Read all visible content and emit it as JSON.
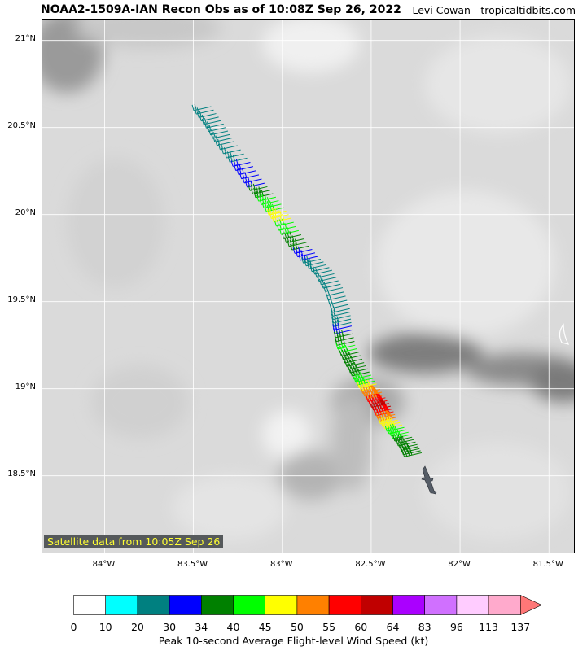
{
  "title": "NOAA2-1509A-IAN Recon Obs as of 10:08Z Sep 26, 2022",
  "credit": "Levi Cowan - tropicaltidbits.com",
  "satellite_note": "Satellite data from 10:05Z Sep 26",
  "map": {
    "lon_range": [
      -84.35,
      -81.35
    ],
    "lat_range": [
      18.05,
      21.12
    ],
    "lat_ticks": [
      {
        "value": 21.0,
        "label": "21°N"
      },
      {
        "value": 20.5,
        "label": "20.5°N"
      },
      {
        "value": 20.0,
        "label": "20°N"
      },
      {
        "value": 19.5,
        "label": "19.5°N"
      },
      {
        "value": 19.0,
        "label": "19°N"
      },
      {
        "value": 18.5,
        "label": "18.5°N"
      }
    ],
    "lon_ticks": [
      {
        "value": -84.0,
        "label": "84°W"
      },
      {
        "value": -83.5,
        "label": "83.5°W"
      },
      {
        "value": -83.0,
        "label": "83°W"
      },
      {
        "value": -82.5,
        "label": "82.5°W"
      },
      {
        "value": -82.0,
        "label": "82°W"
      },
      {
        "value": -81.5,
        "label": "81.5°W"
      }
    ],
    "background_color": "#dcdcdc",
    "grid": true
  },
  "flight_track": [
    {
      "lon": -83.4,
      "lat": 20.62,
      "wind": 20
    },
    {
      "lon": -83.33,
      "lat": 20.52,
      "wind": 22
    },
    {
      "lon": -83.27,
      "lat": 20.42,
      "wind": 20
    },
    {
      "lon": -83.18,
      "lat": 20.3,
      "wind": 31
    },
    {
      "lon": -83.1,
      "lat": 20.18,
      "wind": 32
    },
    {
      "lon": -83.02,
      "lat": 20.08,
      "wind": 42
    },
    {
      "lon": -82.95,
      "lat": 19.98,
      "wind": 47
    },
    {
      "lon": -82.88,
      "lat": 19.86,
      "wind": 36
    },
    {
      "lon": -82.8,
      "lat": 19.76,
      "wind": 32
    },
    {
      "lon": -82.72,
      "lat": 19.68,
      "wind": 20
    },
    {
      "lon": -82.66,
      "lat": 19.58,
      "wind": 20
    },
    {
      "lon": -82.62,
      "lat": 19.46,
      "wind": 20
    },
    {
      "lon": -82.61,
      "lat": 19.36,
      "wind": 31
    },
    {
      "lon": -82.59,
      "lat": 19.25,
      "wind": 42
    },
    {
      "lon": -82.54,
      "lat": 19.15,
      "wind": 36
    },
    {
      "lon": -82.49,
      "lat": 19.06,
      "wind": 42
    },
    {
      "lon": -82.44,
      "lat": 18.98,
      "wind": 52
    },
    {
      "lon": -82.39,
      "lat": 18.9,
      "wind": 62
    },
    {
      "lon": -82.35,
      "lat": 18.82,
      "wind": 48
    },
    {
      "lon": -82.29,
      "lat": 18.75,
      "wind": 42
    },
    {
      "lon": -82.24,
      "lat": 18.68,
      "wind": 36
    },
    {
      "lon": -82.21,
      "lat": 18.62,
      "wind": 36
    }
  ],
  "colorbar": {
    "title": "Peak 10-second Average Flight-level Wind Speed (kt)",
    "bounds": [
      "0",
      "10",
      "20",
      "30",
      "34",
      "40",
      "45",
      "50",
      "55",
      "60",
      "64",
      "83",
      "96",
      "113",
      "137"
    ],
    "colors": [
      "#ffffff",
      "#00ffff",
      "#008080",
      "#0000ff",
      "#008000",
      "#00ff00",
      "#ffff00",
      "#ff8000",
      "#ff0000",
      "#c00000",
      "#aa00ff",
      "#d070ff",
      "#ffccff",
      "#ffaacc"
    ],
    "extend_color": "#ff7777"
  }
}
